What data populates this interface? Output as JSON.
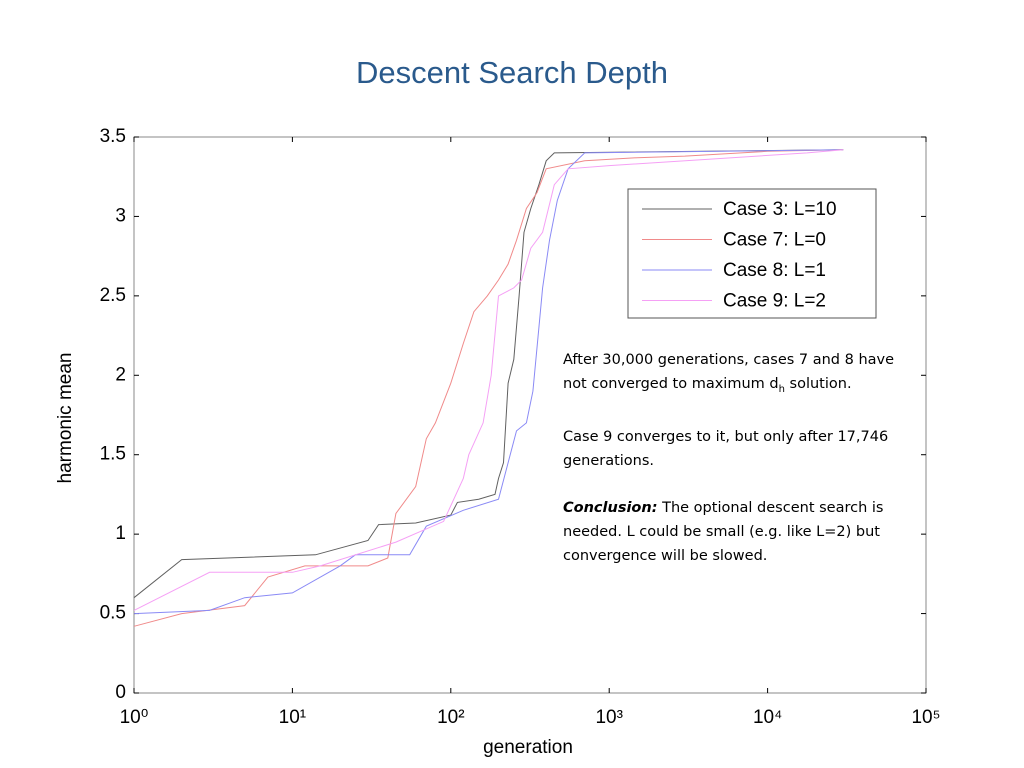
{
  "chart_data": {
    "type": "line",
    "title": "Descent Search Depth",
    "x_label": "generation",
    "y_label": "harmonic mean",
    "xscale": "log",
    "xlim": [
      1,
      100000
    ],
    "xticks": [
      {
        "value": 1,
        "label": "10⁰"
      },
      {
        "value": 10,
        "label": "10¹"
      },
      {
        "value": 100,
        "label": "10²"
      },
      {
        "value": 1000,
        "label": "10³"
      },
      {
        "value": 10000,
        "label": "10⁴"
      },
      {
        "value": 100000,
        "label": "10⁵"
      }
    ],
    "ylim": [
      0,
      3.5
    ],
    "yticks": [
      0,
      0.5,
      1,
      1.5,
      2,
      2.5,
      3,
      3.5
    ],
    "legend": "upper right",
    "series": [
      {
        "name": "Case 3: L=10",
        "color": "#606060",
        "x": [
          1,
          2,
          14,
          30,
          35,
          60,
          100,
          110,
          150,
          190,
          200,
          215,
          230,
          250,
          270,
          290,
          320,
          360,
          400,
          450,
          30000
        ],
        "values": [
          0.6,
          0.84,
          0.87,
          0.96,
          1.06,
          1.07,
          1.12,
          1.2,
          1.22,
          1.25,
          1.35,
          1.45,
          1.95,
          2.1,
          2.5,
          2.9,
          3.05,
          3.2,
          3.35,
          3.4,
          3.42
        ]
      },
      {
        "name": "Case 7: L=0",
        "color": "#f08a8a",
        "x": [
          1,
          2,
          5,
          7,
          12,
          30,
          40,
          45,
          60,
          70,
          80,
          100,
          120,
          140,
          170,
          200,
          230,
          260,
          300,
          350,
          400,
          700,
          1500,
          3000,
          10000,
          30000
        ],
        "values": [
          0.42,
          0.5,
          0.55,
          0.73,
          0.8,
          0.8,
          0.85,
          1.13,
          1.3,
          1.6,
          1.7,
          1.95,
          2.2,
          2.4,
          2.5,
          2.6,
          2.7,
          2.85,
          3.05,
          3.15,
          3.3,
          3.35,
          3.37,
          3.38,
          3.41,
          3.42
        ]
      },
      {
        "name": "Case 8: L=1",
        "color": "#8a8af5",
        "x": [
          1,
          3,
          5,
          10,
          20,
          25,
          55,
          70,
          120,
          200,
          230,
          260,
          300,
          330,
          360,
          380,
          420,
          470,
          550,
          700,
          30000
        ],
        "values": [
          0.5,
          0.52,
          0.6,
          0.63,
          0.8,
          0.87,
          0.87,
          1.05,
          1.15,
          1.22,
          1.45,
          1.65,
          1.7,
          1.9,
          2.3,
          2.55,
          2.85,
          3.1,
          3.3,
          3.4,
          3.42
        ]
      },
      {
        "name": "Case 9: L=2",
        "color": "#f5a0f5",
        "x": [
          1,
          3,
          10,
          15,
          45,
          90,
          120,
          130,
          160,
          180,
          200,
          250,
          280,
          320,
          380,
          450,
          550,
          1000,
          17746,
          30000
        ],
        "values": [
          0.52,
          0.76,
          0.76,
          0.8,
          0.95,
          1.08,
          1.35,
          1.5,
          1.7,
          2.0,
          2.5,
          2.55,
          2.6,
          2.8,
          2.9,
          3.2,
          3.3,
          3.32,
          3.4,
          3.42
        ]
      }
    ],
    "annotations": [
      {
        "text": "After 30,000 generations, cases 7 and 8 have not converged to maximum d",
        "subscript": "h",
        "text_after": " solution."
      },
      {
        "text": "Case 9 converges to it, but only after 17,746 generations."
      },
      {
        "emphasis": "Conclusion:",
        "text": " The optional descent search is needed.  L could be small (e.g. like L=2) but convergence will be slowed."
      }
    ]
  }
}
